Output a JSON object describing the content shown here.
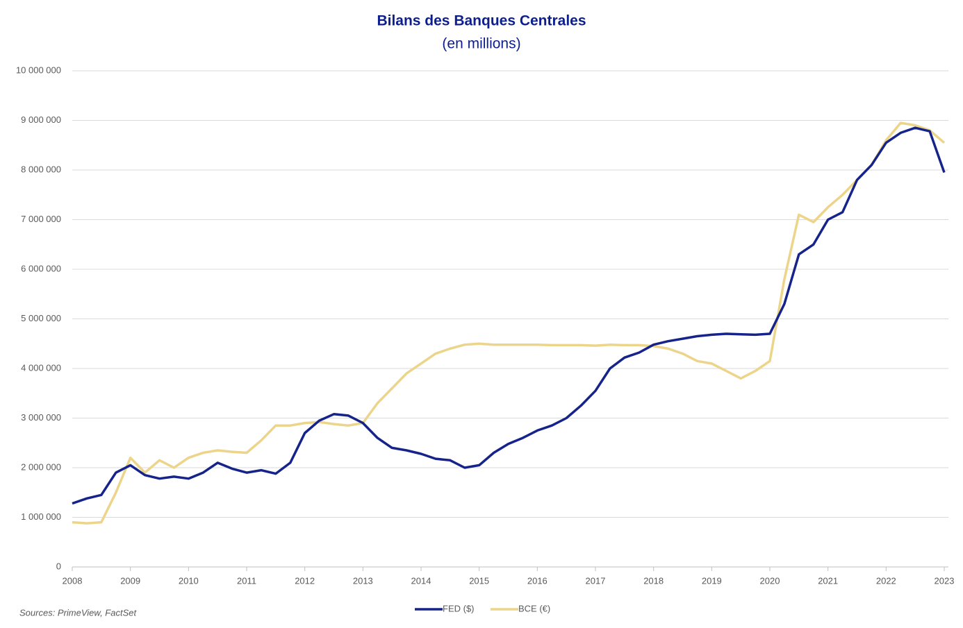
{
  "chart_data": {
    "type": "line",
    "title": "Bilans des Banques Centrales",
    "subtitle": "(en millions)",
    "source": "Sources: PrimeView, FactSet",
    "grid": true,
    "legend": "bottom",
    "x": [
      2008,
      2008.25,
      2008.5,
      2008.75,
      2009,
      2009.25,
      2009.5,
      2009.75,
      2010,
      2010.25,
      2010.5,
      2010.75,
      2011,
      2011.25,
      2011.5,
      2011.75,
      2012,
      2012.25,
      2012.5,
      2012.75,
      2013,
      2013.25,
      2013.5,
      2013.75,
      2014,
      2014.25,
      2014.5,
      2014.75,
      2015,
      2015.25,
      2015.5,
      2015.75,
      2016,
      2016.25,
      2016.5,
      2016.75,
      2017,
      2017.25,
      2017.5,
      2017.75,
      2018,
      2018.25,
      2018.5,
      2018.75,
      2019,
      2019.25,
      2019.5,
      2019.75,
      2020,
      2020.25,
      2020.5,
      2020.75,
      2021,
      2021.25,
      2021.5,
      2021.75,
      2022,
      2022.25,
      2022.5,
      2022.75,
      2023
    ],
    "series": [
      {
        "name": "FED ($)",
        "color": "#15238a",
        "values": [
          1280000,
          1380000,
          1450000,
          1900000,
          2050000,
          1850000,
          1780000,
          1820000,
          1780000,
          1900000,
          2100000,
          1980000,
          1900000,
          1950000,
          1880000,
          2100000,
          2700000,
          2950000,
          3080000,
          3050000,
          2900000,
          2600000,
          2400000,
          2350000,
          2280000,
          2180000,
          2150000,
          2000000,
          2050000,
          2300000,
          2480000,
          2600000,
          2750000,
          2850000,
          3000000,
          3250000,
          3550000,
          4000000,
          4220000,
          4320000,
          4480000,
          4550000,
          4600000,
          4650000,
          4680000,
          4700000,
          4690000,
          4680000,
          4700000,
          5300000,
          6300000,
          6500000,
          7000000,
          7150000,
          7800000,
          8100000,
          8550000,
          8750000,
          8850000,
          8780000,
          7950000
        ]
      },
      {
        "name": "BCE (€)",
        "color": "#ecd58a",
        "values": [
          900000,
          880000,
          900000,
          1500000,
          2200000,
          1900000,
          2150000,
          2000000,
          2200000,
          2300000,
          2350000,
          2320000,
          2300000,
          2550000,
          2850000,
          2850000,
          2900000,
          2920000,
          2880000,
          2850000,
          2900000,
          3300000,
          3600000,
          3900000,
          4100000,
          4300000,
          4400000,
          4480000,
          4500000,
          4480000,
          4480000,
          4480000,
          4480000,
          4470000,
          4470000,
          4470000,
          4460000,
          4480000,
          4470000,
          4470000,
          4450000,
          4400000,
          4300000,
          4150000,
          4100000,
          3950000,
          3800000,
          3950000,
          4150000,
          5800000,
          7100000,
          6950000,
          7250000,
          7500000,
          7800000,
          8100000,
          8600000,
          8950000,
          8900000,
          8800000,
          8550000
        ]
      }
    ],
    "xlim": [
      2008,
      2023
    ],
    "xticks": [
      2008,
      2009,
      2010,
      2011,
      2012,
      2013,
      2014,
      2015,
      2016,
      2017,
      2018,
      2019,
      2020,
      2021,
      2022,
      2023
    ],
    "ylim": [
      0,
      10000000
    ],
    "yticks": [
      0,
      {
        "value": 1000000,
        "label": "1 000 000"
      },
      {
        "value": 2000000,
        "label": "2 000 000"
      },
      {
        "value": 3000000,
        "label": "3 000 000"
      },
      {
        "value": 4000000,
        "label": "4 000 000"
      },
      {
        "value": 5000000,
        "label": "5 000 000"
      },
      {
        "value": 6000000,
        "label": "6 000 000"
      },
      {
        "value": 7000000,
        "label": "7 000 000"
      },
      {
        "value": 8000000,
        "label": "8 000 000"
      },
      {
        "value": 9000000,
        "label": "9 000 000"
      },
      {
        "value": 10000000,
        "label": "10 000 000"
      }
    ]
  }
}
